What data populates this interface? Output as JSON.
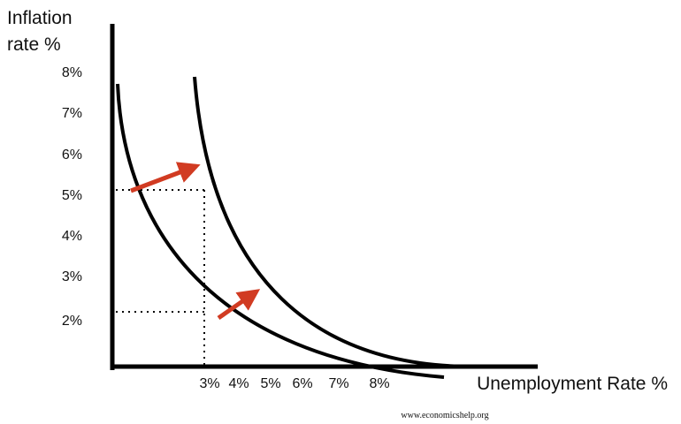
{
  "diagram": {
    "y_axis_title": [
      "Inflation",
      "rate %"
    ],
    "y_tick_labels": [
      "8%",
      "7%",
      "6%",
      "5%",
      "4%",
      "3%",
      "2%"
    ],
    "x_tick_labels": [
      "3%",
      "4%",
      "5%",
      "6%",
      "7%",
      "8%"
    ],
    "x_axis_title": "Unemployment Rate %",
    "source": "www.economicshelp.org"
  }
}
